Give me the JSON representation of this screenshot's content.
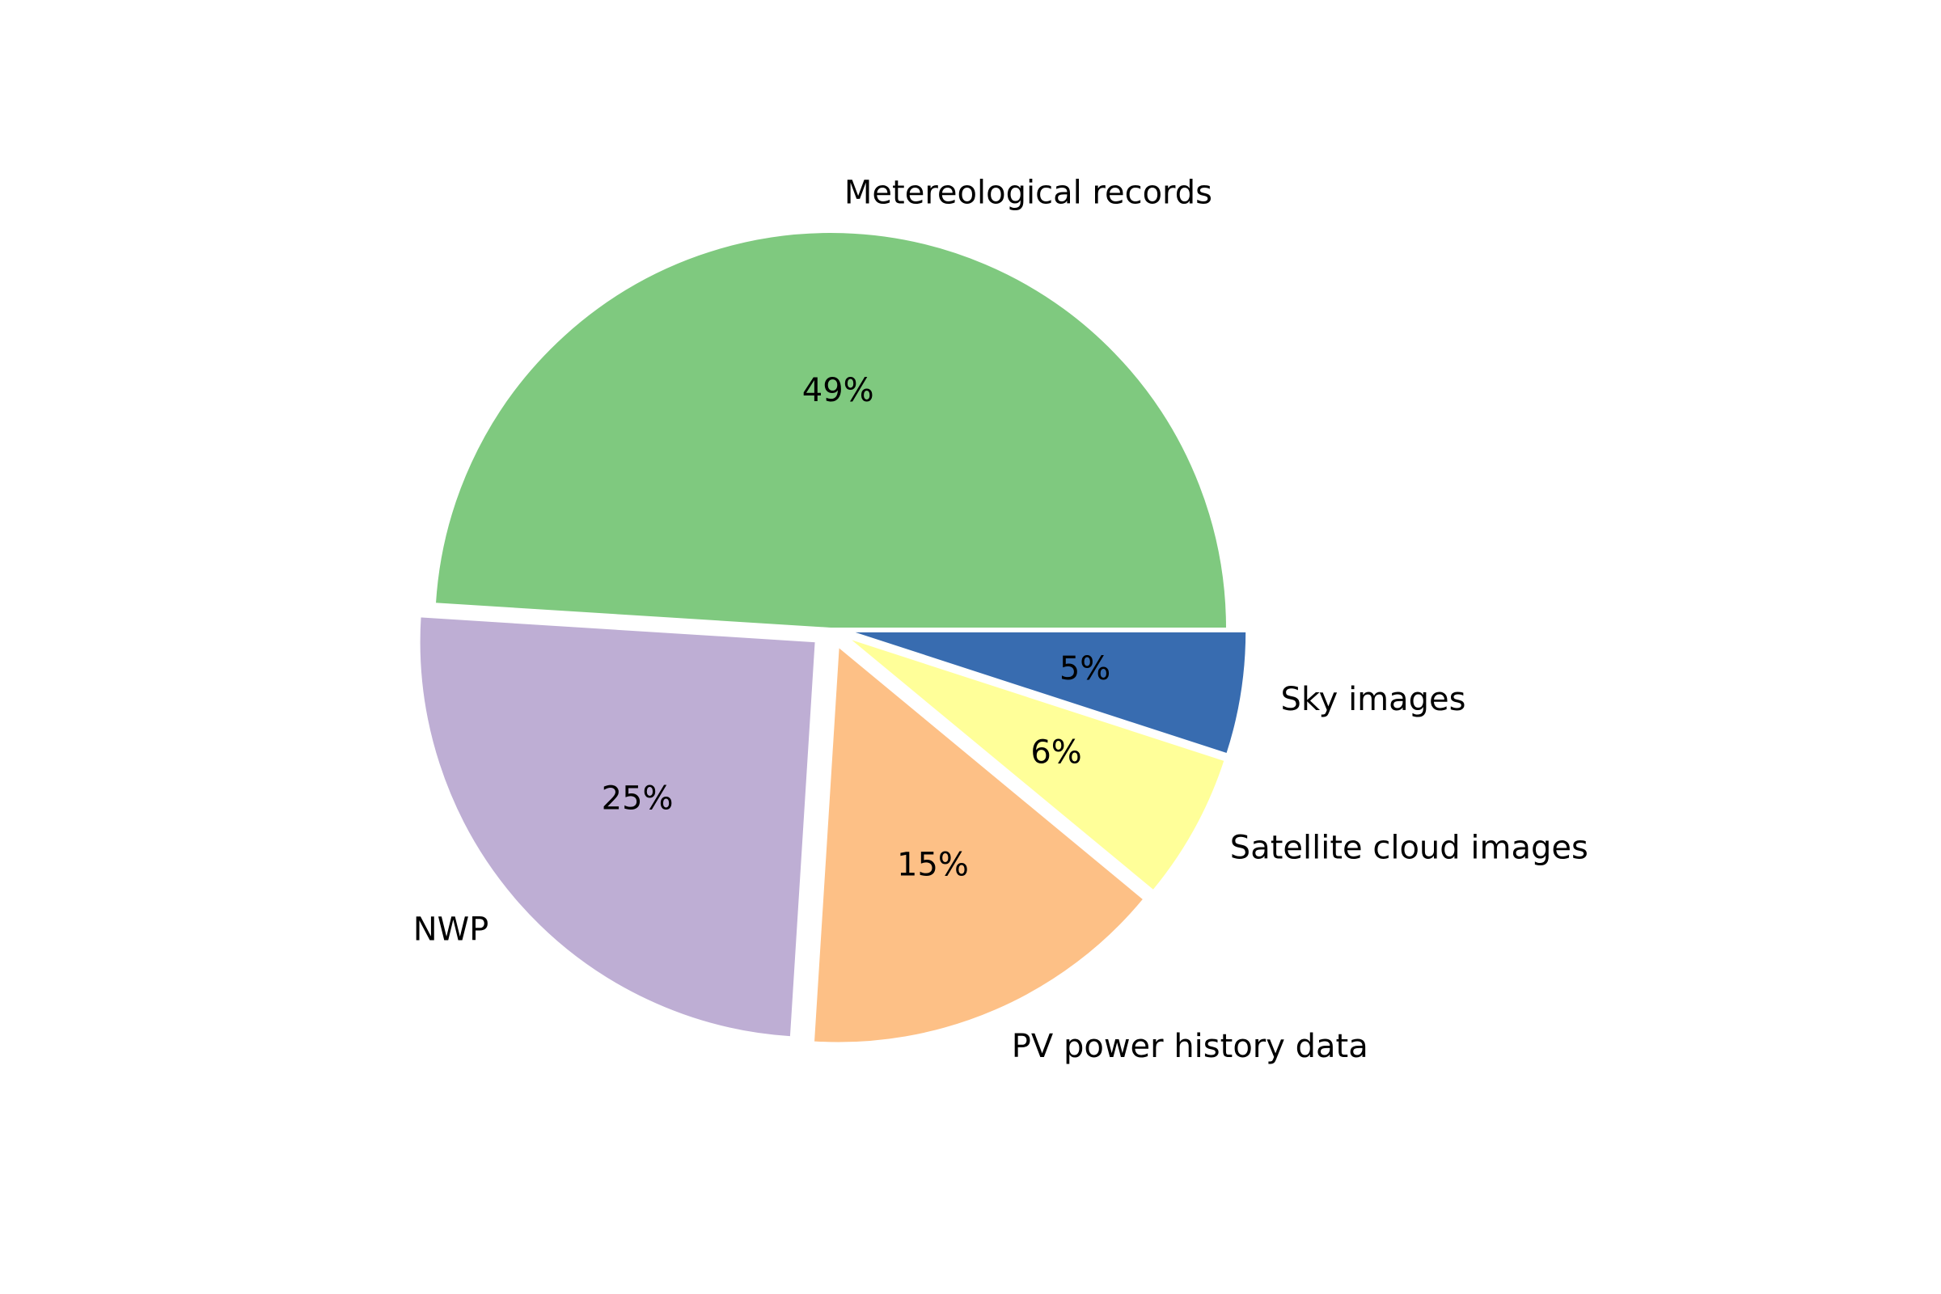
{
  "chart_data": {
    "type": "pie",
    "title": "",
    "start_angle_deg": 0,
    "direction": "counterclockwise",
    "slices": [
      {
        "label": "Metereological records",
        "value": 49,
        "pct_label": "49%",
        "color": "#7fc97f",
        "exploded": false
      },
      {
        "label": "NWP",
        "value": 25,
        "pct_label": "25%",
        "color": "#beaed4",
        "exploded": true
      },
      {
        "label": "PV power history data",
        "value": 15,
        "pct_label": "15%",
        "color": "#fdc086",
        "exploded": true
      },
      {
        "label": "Satellite cloud images",
        "value": 6,
        "pct_label": "6%",
        "color": "#ffff99",
        "exploded": true
      },
      {
        "label": "Sky images",
        "value": 5,
        "pct_label": "5%",
        "color": "#386cb0",
        "exploded": true
      }
    ]
  }
}
